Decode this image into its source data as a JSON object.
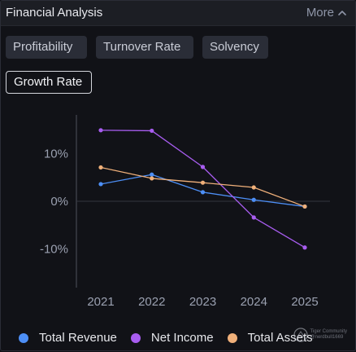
{
  "header": {
    "title": "Financial Analysis",
    "more_label": "More"
  },
  "tabs": [
    {
      "label": "Profitability",
      "active": false
    },
    {
      "label": "Turnover Rate",
      "active": false
    },
    {
      "label": "Solvency",
      "active": false
    },
    {
      "label": "Growth Rate",
      "active": true
    }
  ],
  "chart_data": {
    "type": "line",
    "x": [
      "2021",
      "2022",
      "2023",
      "2024",
      "2025"
    ],
    "yticks": [
      "10%",
      "0%",
      "-10%"
    ],
    "ylim": [
      -18,
      18
    ],
    "series": [
      {
        "name": "Total Revenue",
        "values": [
          3.6,
          5.6,
          1.9,
          0.3,
          -1.1
        ],
        "color": "#4d8ff6"
      },
      {
        "name": "Net Income",
        "values": [
          14.9,
          14.8,
          7.2,
          -3.4,
          -9.7
        ],
        "color": "#a85df0"
      },
      {
        "name": "Total Assets",
        "values": [
          7.1,
          4.8,
          3.9,
          2.9,
          -1.1
        ],
        "color": "#f0b07a"
      }
    ],
    "grid": false,
    "legend_position": "bottom"
  },
  "watermark": {
    "line1": "Tiger Community",
    "line2": "@nerdbull1669"
  }
}
